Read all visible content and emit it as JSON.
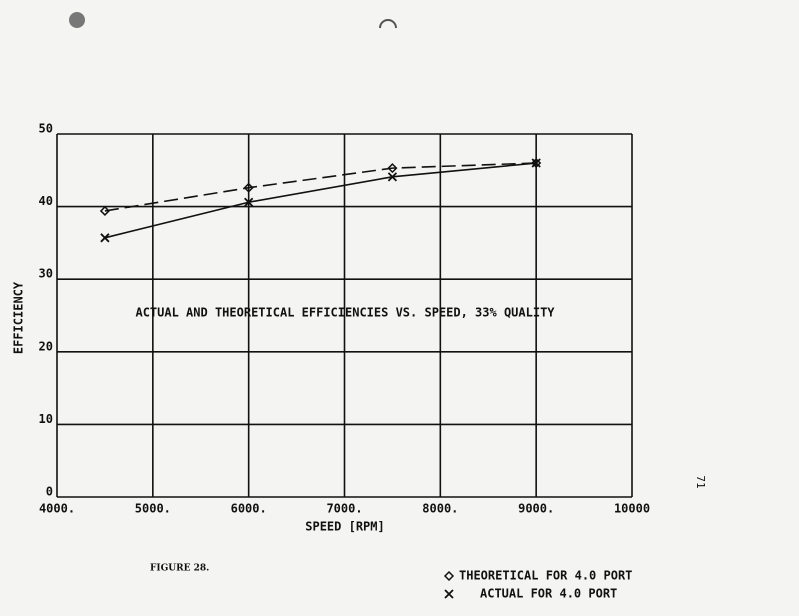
{
  "chart_data": {
    "type": "line",
    "annotation": "ACTUAL AND THEORETICAL EFFICIENCIES VS. SPEED, 33% QUALITY",
    "x_label": "SPEED [RPM]",
    "y_label": "EFFICIENCY",
    "caption": "FIGURE 28.",
    "page_number": "71",
    "x": [
      4500,
      6000,
      7500,
      9000
    ],
    "series": [
      {
        "name": "THEORETICAL FOR 4.0 PORT",
        "color": "#111111",
        "marker": "diamond",
        "dashed": true,
        "values": [
          39.4,
          42.6,
          45.3,
          46
        ]
      },
      {
        "name": "ACTUAL FOR 4.0 PORT",
        "color": "#111111",
        "marker": "x",
        "dashed": false,
        "values": [
          35.7,
          40.6,
          44.1,
          46
        ]
      }
    ],
    "xlim": [
      4000,
      10000
    ],
    "xticks": [
      {
        "value": 4000,
        "label": "4000."
      },
      {
        "value": 5000,
        "label": "5000."
      },
      {
        "value": 6000,
        "label": "6000."
      },
      {
        "value": 7000,
        "label": "7000."
      },
      {
        "value": 8000,
        "label": "8000."
      },
      {
        "value": 9000,
        "label": "9000."
      },
      10000
    ],
    "ylim": [
      0,
      50
    ],
    "yticks": [
      0,
      10,
      20,
      30,
      40,
      50
    ],
    "grid": true
  }
}
